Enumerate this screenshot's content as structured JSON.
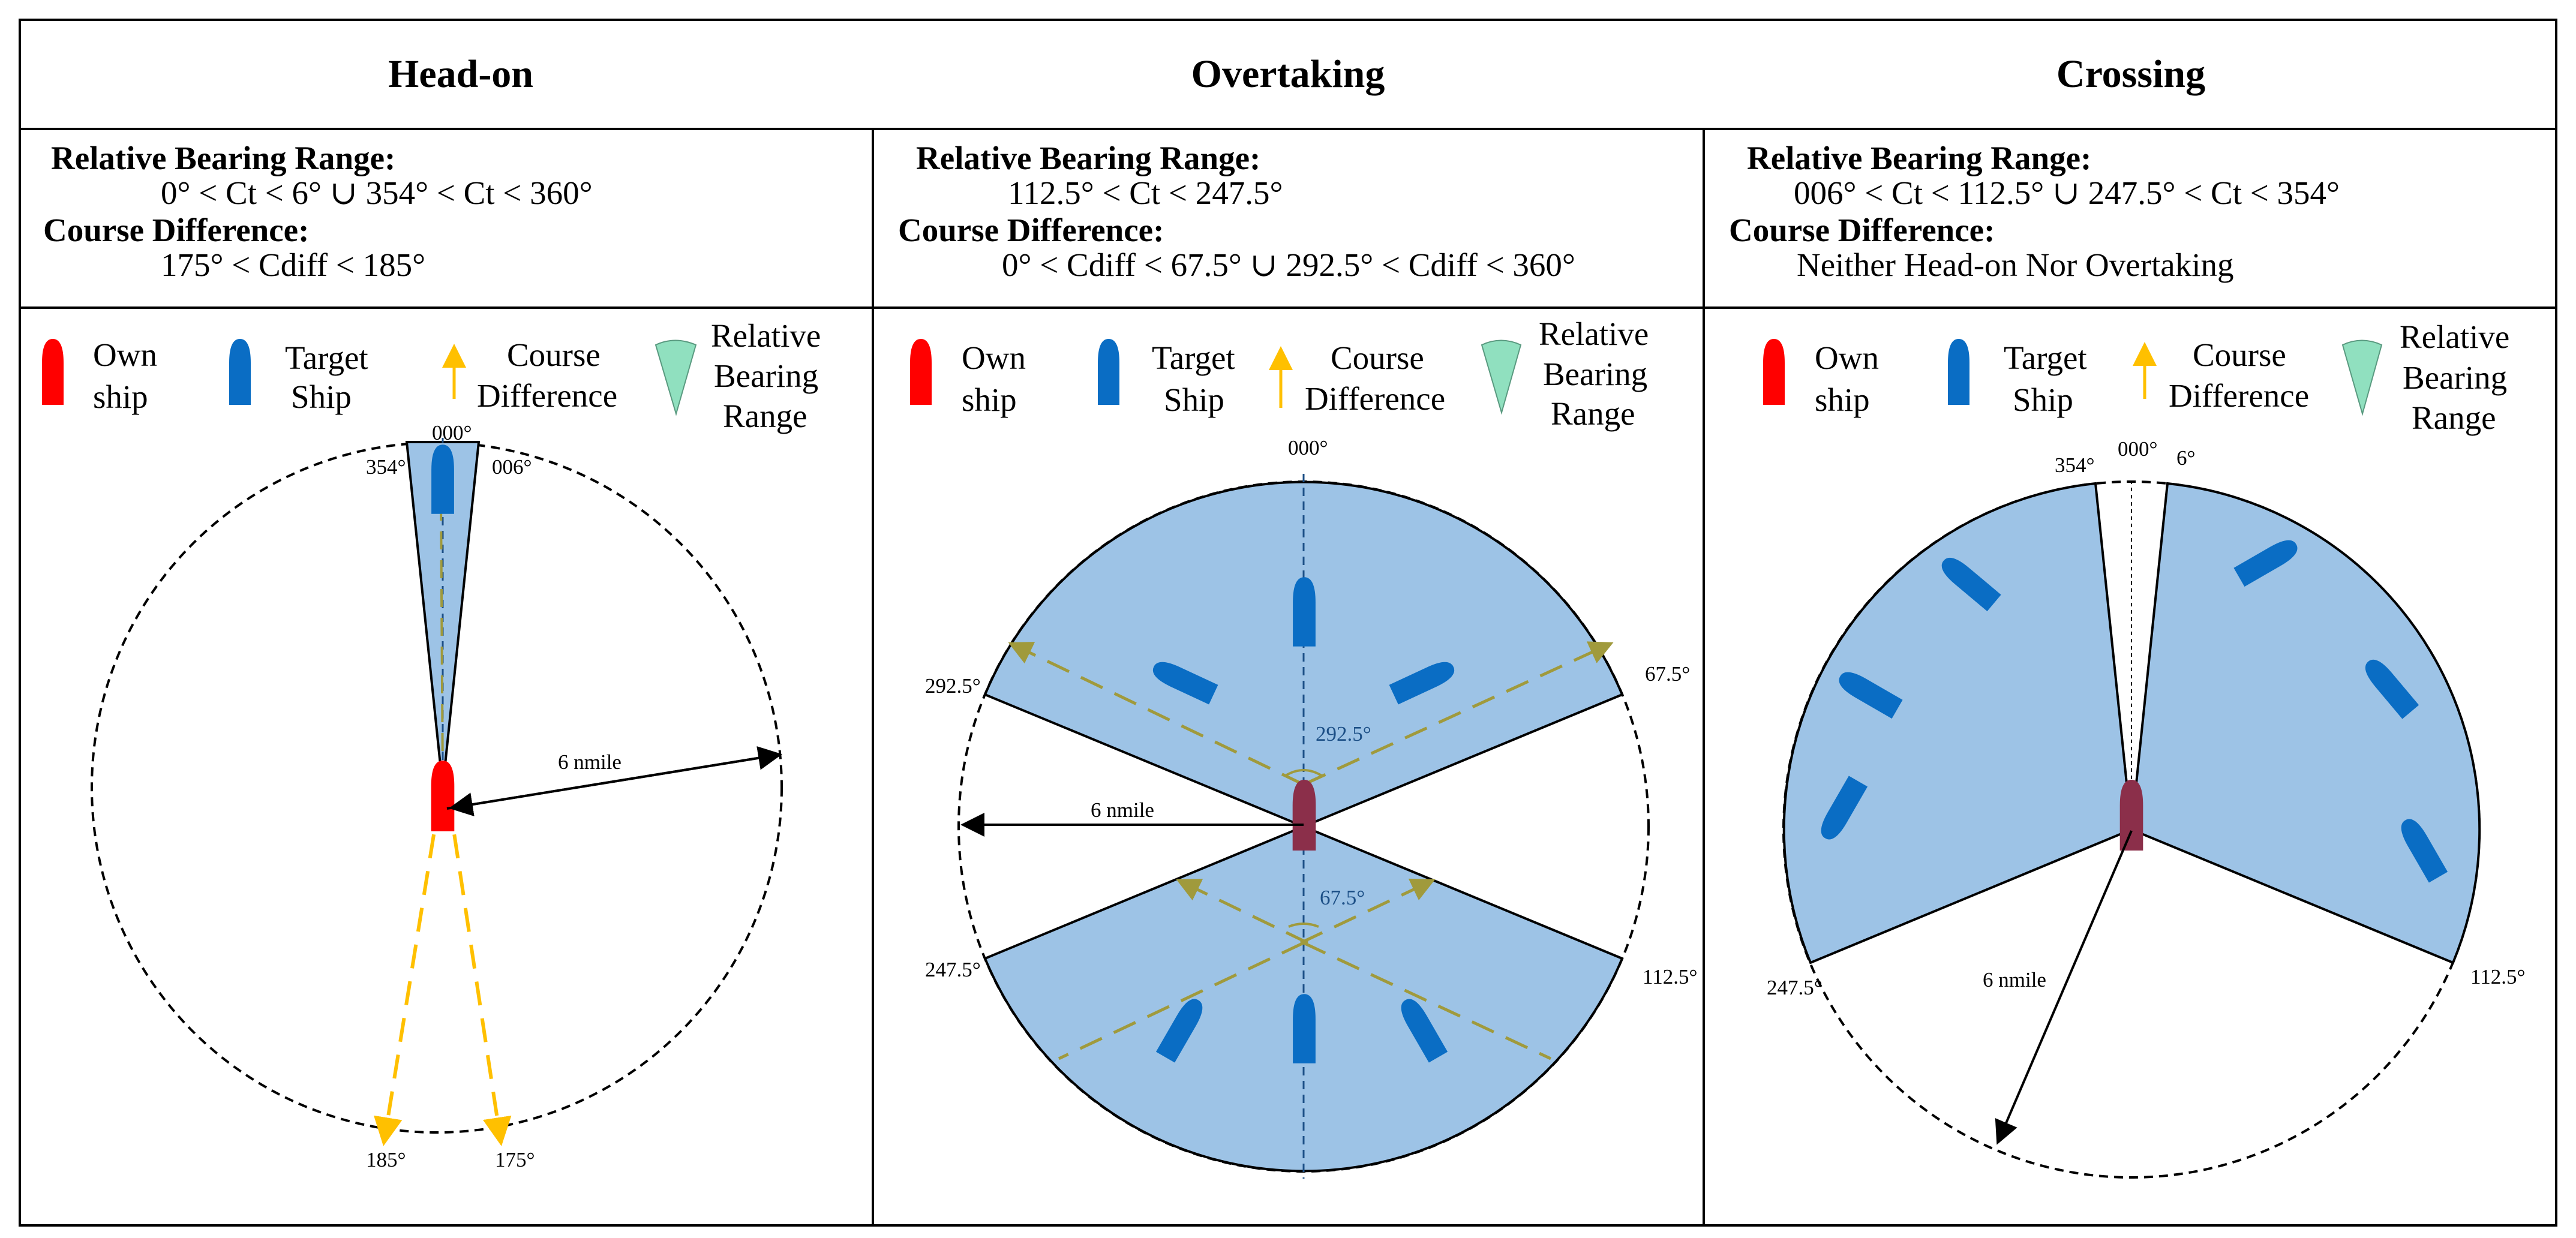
{
  "colors": {
    "own_ship": "#ff0000",
    "target_ship": "#0a6dc4",
    "sector_fill": "#9dc3e6",
    "course_arrow": "#ffc000",
    "course_line_olive": "#a09a3c",
    "legend_triangle": "#90e0bf",
    "border": "#000000"
  },
  "legend": {
    "own_line1": "Own",
    "own_line2": "ship",
    "target_line1": "Target",
    "target_line2": "Ship",
    "course_line1": "Course",
    "course_line2": "Difference",
    "range_line1": "Relative",
    "range_line2": "Bearing",
    "range_line3": "Range"
  },
  "panels": [
    {
      "title": "Head-on",
      "bearing_label": "Relative Bearing Range:",
      "bearing_value": "0° < Ct < 6° ∪ 354° < Ct < 360°",
      "course_label": "Course Difference:",
      "course_value": "175° < Cdiff < 185°",
      "ticks": {
        "t000": "000°",
        "t354": "354°",
        "t006": "006°",
        "t185": "185°",
        "t175": "175°"
      },
      "radius_label": "6 nmile"
    },
    {
      "title": "Overtaking",
      "bearing_label": "Relative Bearing Range:",
      "bearing_value": "112.5° < Ct < 247.5°",
      "course_label": "Course Difference:",
      "course_value": "0° < Cdiff < 67.5° ∪ 292.5° < Cdiff < 360°",
      "ticks": {
        "t000": "000°",
        "t2925": "292.5°",
        "t675": "67.5°",
        "t2475": "247.5°",
        "t1125": "112.5°"
      },
      "angle_labels": {
        "a2925": "292.5°",
        "a675": "67.5°"
      },
      "radius_label": "6 nmile"
    },
    {
      "title": "Crossing",
      "bearing_label": "Relative Bearing Range:",
      "bearing_value": "006° < Ct < 112.5° ∪ 247.5° < Ct < 354°",
      "course_label": "Course Difference:",
      "course_value": "Neither Head-on Nor Overtaking",
      "ticks": {
        "t354": "354°",
        "t000": "000°",
        "t6": "6°",
        "t2475": "247.5°",
        "t1125": "112.5°"
      },
      "radius_label": "6 nmile"
    }
  ]
}
